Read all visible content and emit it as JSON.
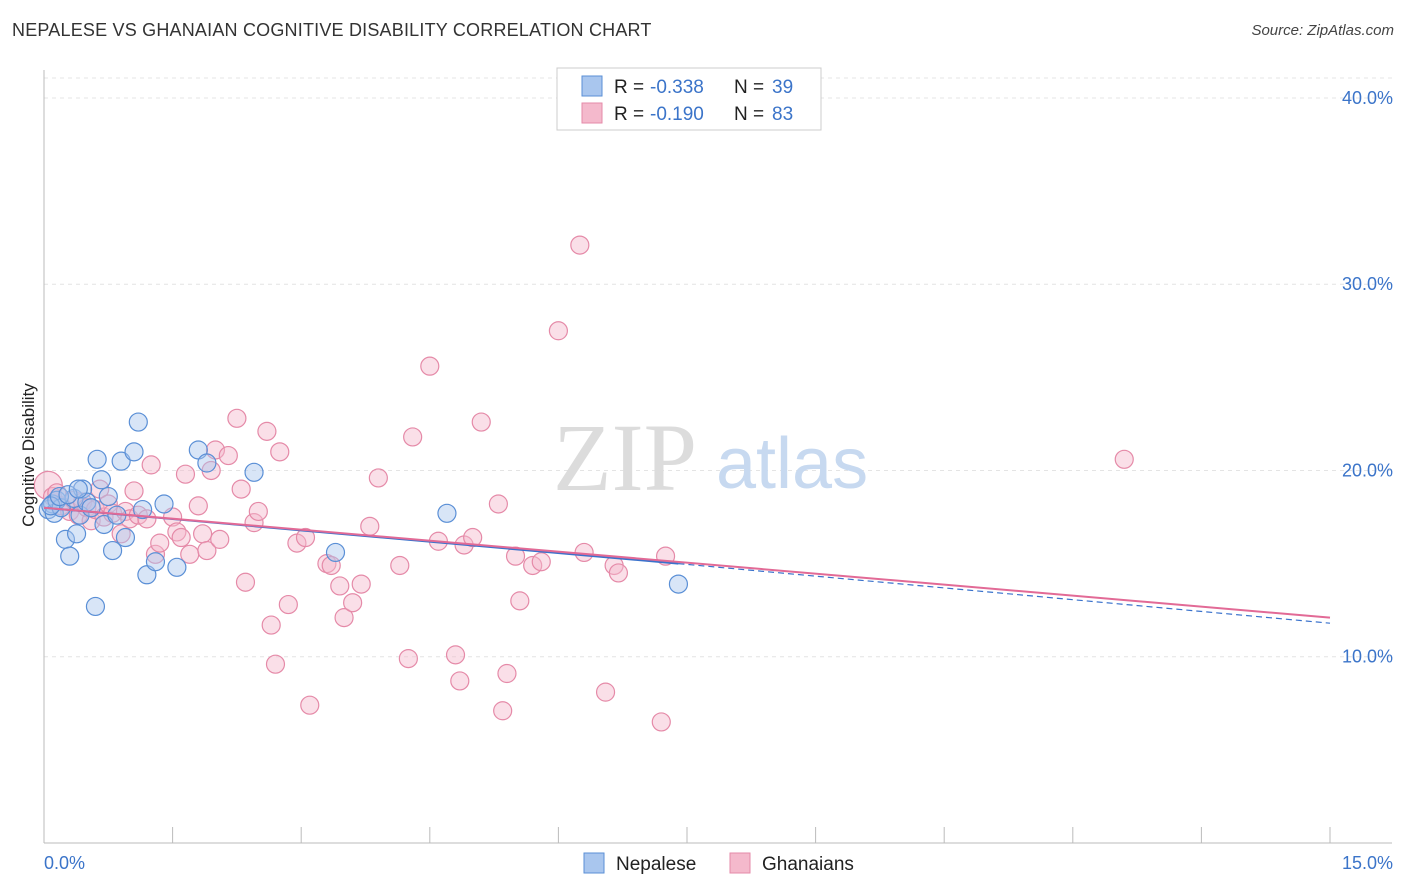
{
  "title": "NEPALESE VS GHANAIAN COGNITIVE DISABILITY CORRELATION CHART",
  "source": "Source: ZipAtlas.com",
  "watermark": {
    "zip": "ZIP",
    "atlas": "atlas"
  },
  "colors": {
    "nepalese_fill": "#a9c6ee",
    "nepalese_stroke": "#5a8fd6",
    "nepalese_line": "#3a72cc",
    "ghanaian_fill": "#f4b9cc",
    "ghanaian_stroke": "#e58aa8",
    "ghanaian_line": "#e26a96",
    "tick_label": "#3b74c9"
  },
  "legend_top": [
    {
      "r_label": "R = ",
      "r_value": "-0.338",
      "n_label": "N = ",
      "n_value": "39",
      "color": "#a9c6ee"
    },
    {
      "r_label": "R = ",
      "r_value": "-0.190",
      "n_label": "N = ",
      "n_value": "83",
      "color": "#f4b9cc"
    }
  ],
  "chart_data": {
    "type": "scatter",
    "title": "NEPALESE VS GHANAIAN COGNITIVE DISABILITY CORRELATION CHART",
    "xlabel": "",
    "ylabel": "Cognitive Disability",
    "xlim": [
      0,
      15
    ],
    "ylim": [
      0,
      41.5
    ],
    "x_tick_labels": [
      "0.0%",
      "15.0%"
    ],
    "y_ticks": [
      10,
      20,
      30,
      40
    ],
    "y_tick_labels": [
      "10.0%",
      "20.0%",
      "30.0%",
      "40.0%"
    ],
    "grid": true,
    "legend_position": "bottom-center",
    "series": [
      {
        "name": "Nepalese",
        "r": -0.338,
        "n": 39,
        "trend": {
          "x": [
            0.0,
            7.4
          ],
          "y": [
            18.0,
            15.0
          ],
          "dashed_to": [
            15.0,
            11.8
          ]
        },
        "points": [
          [
            0.05,
            17.9
          ],
          [
            0.1,
            18.2
          ],
          [
            0.12,
            17.7
          ],
          [
            0.15,
            18.4
          ],
          [
            0.2,
            18.0
          ],
          [
            0.25,
            16.3
          ],
          [
            0.3,
            15.4
          ],
          [
            0.35,
            18.5
          ],
          [
            0.38,
            16.6
          ],
          [
            0.42,
            17.6
          ],
          [
            0.45,
            19.0
          ],
          [
            0.5,
            18.3
          ],
          [
            0.55,
            18.0
          ],
          [
            0.6,
            12.7
          ],
          [
            0.62,
            20.6
          ],
          [
            0.67,
            19.5
          ],
          [
            0.7,
            17.1
          ],
          [
            0.75,
            18.6
          ],
          [
            0.8,
            15.7
          ],
          [
            0.85,
            17.6
          ],
          [
            0.9,
            20.5
          ],
          [
            0.95,
            16.4
          ],
          [
            1.05,
            21.0
          ],
          [
            1.1,
            22.6
          ],
          [
            1.15,
            17.9
          ],
          [
            1.2,
            14.4
          ],
          [
            1.3,
            15.1
          ],
          [
            1.4,
            18.2
          ],
          [
            1.55,
            14.8
          ],
          [
            1.8,
            21.1
          ],
          [
            1.9,
            20.4
          ],
          [
            2.45,
            19.9
          ],
          [
            3.4,
            15.6
          ],
          [
            4.7,
            17.7
          ],
          [
            7.4,
            13.9
          ],
          [
            0.08,
            18.1
          ],
          [
            0.18,
            18.6
          ],
          [
            0.28,
            18.7
          ],
          [
            0.4,
            19.0
          ]
        ]
      },
      {
        "name": "Ghanaians",
        "r": -0.19,
        "n": 83,
        "trend": {
          "x": [
            0.0,
            15.0
          ],
          "y": [
            18.0,
            12.1
          ]
        },
        "points": [
          [
            0.05,
            19.2
          ],
          [
            0.1,
            18.6
          ],
          [
            0.15,
            18.8
          ],
          [
            0.2,
            18.1
          ],
          [
            0.3,
            17.8
          ],
          [
            0.35,
            18.4
          ],
          [
            0.4,
            17.6
          ],
          [
            0.45,
            18.3
          ],
          [
            0.5,
            18.0
          ],
          [
            0.55,
            17.3
          ],
          [
            0.6,
            17.9
          ],
          [
            0.65,
            19.0
          ],
          [
            0.7,
            17.5
          ],
          [
            0.75,
            18.2
          ],
          [
            0.8,
            17.7
          ],
          [
            0.9,
            16.6
          ],
          [
            0.95,
            17.8
          ],
          [
            1.0,
            17.4
          ],
          [
            1.05,
            18.9
          ],
          [
            1.1,
            17.6
          ],
          [
            1.2,
            17.4
          ],
          [
            1.25,
            20.3
          ],
          [
            1.3,
            15.5
          ],
          [
            1.35,
            16.1
          ],
          [
            1.5,
            17.5
          ],
          [
            1.55,
            16.7
          ],
          [
            1.6,
            16.4
          ],
          [
            1.65,
            19.8
          ],
          [
            1.7,
            15.5
          ],
          [
            1.8,
            18.1
          ],
          [
            1.85,
            16.6
          ],
          [
            1.9,
            15.7
          ],
          [
            1.95,
            20.0
          ],
          [
            2.0,
            21.1
          ],
          [
            2.05,
            16.3
          ],
          [
            2.15,
            20.8
          ],
          [
            2.25,
            22.8
          ],
          [
            2.3,
            19.0
          ],
          [
            2.35,
            14.0
          ],
          [
            2.45,
            17.2
          ],
          [
            2.5,
            17.8
          ],
          [
            2.6,
            22.1
          ],
          [
            2.65,
            11.7
          ],
          [
            2.7,
            9.6
          ],
          [
            2.75,
            21.0
          ],
          [
            2.85,
            12.8
          ],
          [
            2.95,
            16.1
          ],
          [
            3.05,
            16.4
          ],
          [
            3.1,
            7.4
          ],
          [
            3.3,
            15.0
          ],
          [
            3.35,
            14.9
          ],
          [
            3.45,
            13.8
          ],
          [
            3.5,
            12.1
          ],
          [
            3.6,
            12.9
          ],
          [
            3.7,
            13.9
          ],
          [
            3.8,
            17.0
          ],
          [
            3.9,
            19.6
          ],
          [
            4.15,
            14.9
          ],
          [
            4.25,
            9.9
          ],
          [
            4.3,
            21.8
          ],
          [
            4.5,
            25.6
          ],
          [
            4.6,
            16.2
          ],
          [
            4.8,
            10.1
          ],
          [
            4.85,
            8.7
          ],
          [
            4.9,
            16.0
          ],
          [
            5.0,
            16.4
          ],
          [
            5.1,
            22.6
          ],
          [
            5.3,
            18.2
          ],
          [
            5.35,
            7.1
          ],
          [
            5.4,
            9.1
          ],
          [
            5.5,
            15.4
          ],
          [
            5.55,
            13.0
          ],
          [
            5.7,
            14.9
          ],
          [
            5.8,
            15.1
          ],
          [
            6.0,
            27.5
          ],
          [
            6.25,
            32.1
          ],
          [
            6.3,
            15.6
          ],
          [
            6.55,
            8.1
          ],
          [
            6.65,
            14.9
          ],
          [
            6.7,
            14.5
          ],
          [
            7.2,
            6.5
          ],
          [
            7.25,
            15.4
          ],
          [
            12.6,
            20.6
          ]
        ]
      }
    ]
  }
}
